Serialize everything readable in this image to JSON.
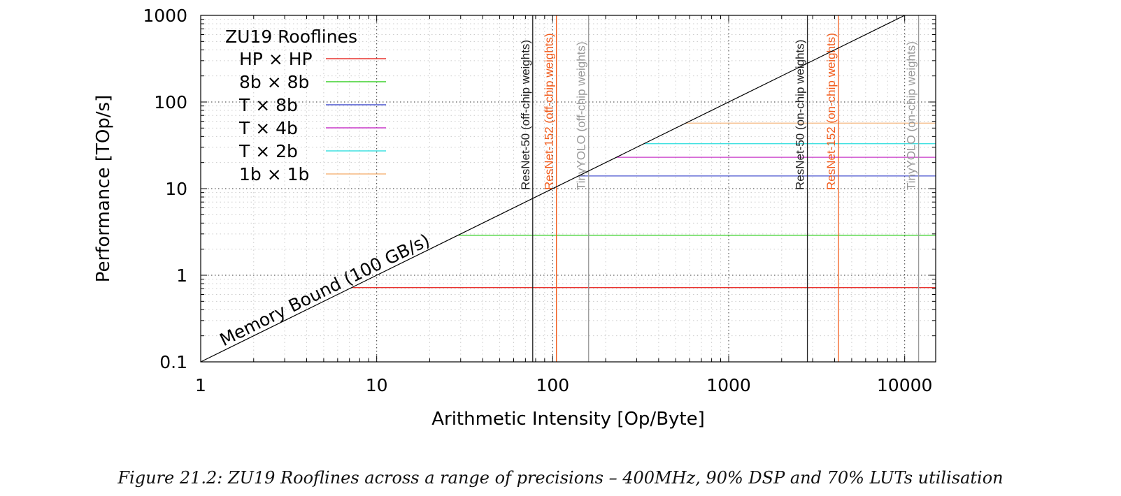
{
  "caption": "Figure 21.2:  ZU19 Rooflines across a range of precisions – 400MHz, 90% DSP and 70% LUTs utilisation",
  "chart_data": {
    "type": "line",
    "title": "",
    "xlabel": "Arithmetic Intensity [Op/Byte]",
    "ylabel": "Performance [TOp/s]",
    "xscale": "log",
    "yscale": "log",
    "xlim": [
      1,
      15000
    ],
    "ylim": [
      0.1,
      1000
    ],
    "x_ticks": [
      1,
      10,
      100,
      1000,
      10000
    ],
    "x_tick_labels": [
      "1",
      "10",
      "100",
      "1000",
      "10000"
    ],
    "y_ticks": [
      0.1,
      1,
      10,
      100,
      1000
    ],
    "y_tick_labels": [
      "0.1",
      "1",
      "10",
      "100",
      "1000"
    ],
    "grid": true,
    "legend_title": "ZU19 Rooflines",
    "legend_position": "top-left",
    "memory_bound": {
      "label": "Memory Bound (100 GB/s)",
      "bandwidth_tops_per_op_byte": 0.1,
      "color": "#000000"
    },
    "series": [
      {
        "name": "HP × HP",
        "peak": 0.72,
        "color": "#e8332f"
      },
      {
        "name": "8b × 8b",
        "peak": 2.9,
        "color": "#3ed12e"
      },
      {
        "name": "T × 8b",
        "peak": 14,
        "color": "#4a55cf"
      },
      {
        "name": "T × 4b",
        "peak": 23,
        "color": "#c838c8"
      },
      {
        "name": "T × 2b",
        "peak": 33,
        "color": "#3ee0e0"
      },
      {
        "name": "1b × 1b",
        "peak": 57,
        "color": "#f5b880"
      }
    ],
    "vertical_markers": [
      {
        "label": "ResNet-50 (off-chip weights)",
        "x": 77,
        "color": "#222222"
      },
      {
        "label": "ResNet-152 (off-chip weights)",
        "x": 105,
        "color": "#f25c1c"
      },
      {
        "label": "TinyYOLO (off-chip weights)",
        "x": 160,
        "color": "#999999"
      },
      {
        "label": "ResNet-50 (on-chip weights)",
        "x": 2800,
        "color": "#222222"
      },
      {
        "label": "ResNet-152 (on-chip weights)",
        "x": 4200,
        "color": "#f25c1c"
      },
      {
        "label": "TinyYOLO (on-chip weights)",
        "x": 12000,
        "color": "#999999"
      }
    ]
  }
}
